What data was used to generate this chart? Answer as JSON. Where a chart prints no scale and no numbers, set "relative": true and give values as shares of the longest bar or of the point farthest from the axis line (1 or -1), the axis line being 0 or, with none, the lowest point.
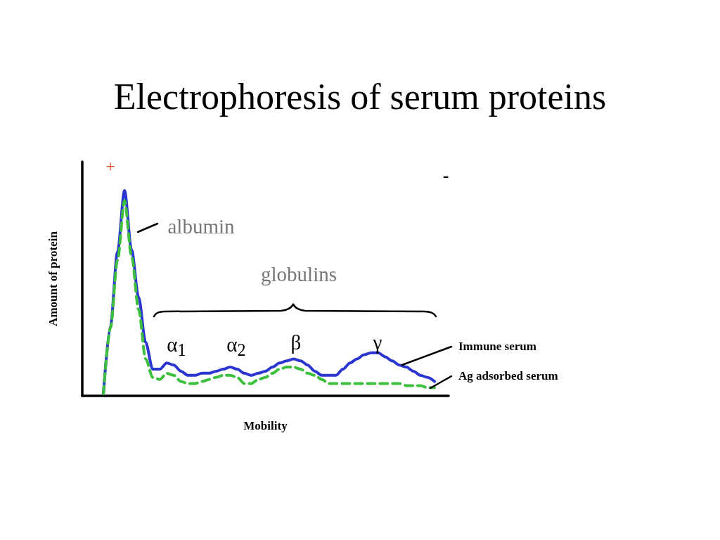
{
  "chart_data": {
    "type": "line",
    "title": "Electrophoresis of serum proteins",
    "xlabel": "Mobility",
    "ylabel": "Amount of protein",
    "relative": true,
    "marker": "none",
    "annotations": [
      "+",
      "-",
      "albumin",
      "globulins",
      "α$_{1}$",
      "α$_{2}$",
      "β",
      "γ"
    ],
    "categories": [
      null,
      null,
      null,
      null,
      null,
      null,
      null,
      null,
      null,
      null,
      null,
      null,
      null,
      null,
      null,
      null,
      null,
      null,
      null,
      null,
      null,
      null,
      null,
      null,
      null,
      null,
      null,
      null,
      null,
      null,
      null,
      null,
      null,
      null,
      null,
      null,
      null,
      null,
      null,
      null,
      null,
      null,
      null,
      null,
      null,
      null,
      null,
      null,
      null,
      null,
      null,
      null,
      null
    ],
    "series": [
      {
        "name": "Immune serum",
        "color": "#2b35d0",
        "line_style": "solid",
        "values": [
          null,
          null,
          null,
          0.01,
          0.34,
          0.7,
          1,
          0.71,
          0.48,
          0.26,
          0.13,
          0.13,
          0.16,
          0.15,
          0.12,
          0.1,
          0.1,
          0.11,
          0.11,
          0.12,
          0.13,
          0.14,
          0.13,
          0.11,
          0.1,
          0.11,
          0.12,
          0.14,
          0.16,
          0.17,
          0.18,
          0.17,
          0.15,
          0.12,
          0.1,
          0.1,
          0.1,
          0.13,
          0.16,
          0.18,
          0.2,
          0.21,
          0.21,
          0.19,
          0.17,
          0.15,
          0.14,
          0.12,
          0.1,
          0.09,
          0.07,
          null,
          null
        ]
      },
      {
        "name": "Ag adsorbed serum",
        "color": "#3cbf3c",
        "line_style": "dashed",
        "values": [
          null,
          null,
          null,
          0.01,
          0.33,
          0.66,
          0.95,
          0.68,
          0.42,
          0.18,
          0.09,
          0.08,
          0.11,
          0.1,
          0.07,
          0.06,
          0.06,
          0.07,
          0.08,
          0.09,
          0.1,
          0.1,
          0.09,
          0.06,
          0.06,
          0.08,
          0.09,
          0.11,
          0.13,
          0.14,
          0.14,
          0.13,
          0.11,
          0.1,
          0.08,
          0.06,
          0.06,
          0.06,
          0.06,
          0.06,
          0.06,
          0.06,
          0.06,
          0.06,
          0.06,
          0.06,
          0.05,
          0.05,
          0.05,
          0.04,
          0.04,
          null,
          null
        ]
      }
    ]
  }
}
